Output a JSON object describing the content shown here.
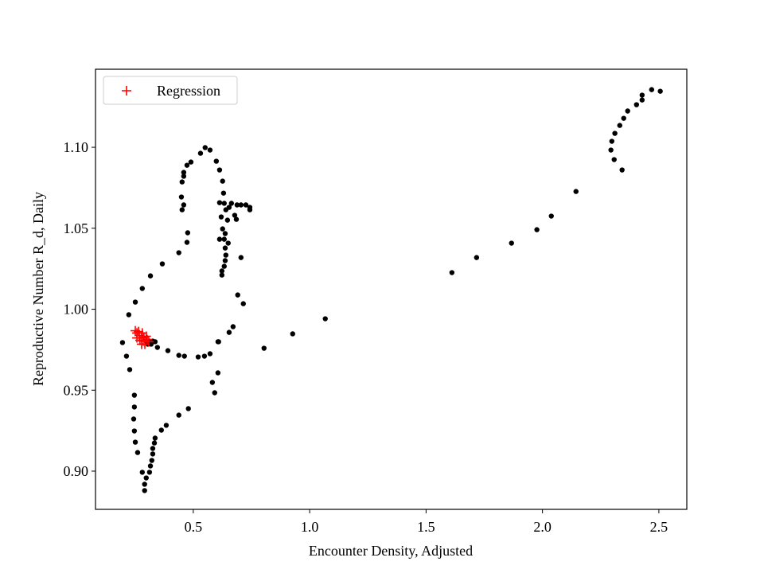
{
  "chart_data": {
    "type": "scatter",
    "x_label": "Encounter Density, Adjusted",
    "y_label": "Reproductive Number R_d, Daily",
    "xlim": [
      0.08,
      2.62
    ],
    "ylim": [
      0.8764,
      1.1482
    ],
    "xticks": [
      0.5,
      {
        "value": 1.0,
        "label": "1.0"
      },
      1.5,
      {
        "value": 2.0,
        "label": "2.0"
      },
      2.5
    ],
    "yticks": [
      {
        "value": 0.9,
        "label": "0.90"
      },
      0.95,
      {
        "value": 1.0,
        "label": "1.00"
      },
      1.05,
      {
        "value": 1.1,
        "label": "1.10"
      }
    ],
    "legend": "upper left",
    "series": [
      {
        "color": "#000000",
        "marker": "dot",
        "x": [
          2.506,
          2.469,
          2.428,
          2.428,
          2.404,
          2.366,
          2.349,
          2.332,
          2.311,
          2.298,
          2.294,
          2.308,
          2.342,
          2.144,
          2.038,
          1.976,
          1.867,
          1.717,
          1.611,
          1.067,
          0.927,
          0.804,
          0.671,
          0.654,
          0.609,
          0.572,
          0.548,
          0.521,
          0.462,
          0.438,
          0.391,
          0.346,
          0.305,
          0.298,
          0.312,
          0.326,
          0.336,
          0.319,
          0.196,
          0.213,
          0.227,
          0.247,
          0.247,
          0.244,
          0.247,
          0.251,
          0.261,
          0.281,
          0.298,
          0.291,
          0.291,
          0.312,
          0.316,
          0.322,
          0.326,
          0.326,
          0.333,
          0.336,
          0.363,
          0.384,
          0.438,
          0.479,
          0.582,
          0.592,
          0.606,
          0.606,
          0.223,
          0.251,
          0.281,
          0.316,
          0.367,
          0.438,
          0.473,
          0.476,
          0.459,
          0.452,
          0.449,
          0.452,
          0.459,
          0.459,
          0.473,
          0.49,
          0.531,
          0.551,
          0.572,
          0.599,
          0.613,
          0.626,
          0.63,
          0.633,
          0.613,
          0.62,
          0.626,
          0.637,
          0.633,
          0.613,
          0.65,
          0.637,
          0.64,
          0.637,
          0.633,
          0.623,
          0.623,
          0.647,
          0.64,
          0.654,
          0.664,
          0.678,
          0.685,
          0.688,
          0.705,
          0.726,
          0.743,
          0.743,
          0.705,
          0.691,
          0.715
        ],
        "values": [
          1.1346,
          1.1356,
          1.1322,
          1.1292,
          1.1263,
          1.1224,
          1.1179,
          1.1135,
          1.1086,
          1.1037,
          1.0983,
          1.0924,
          1.086,
          1.0727,
          1.0575,
          1.0491,
          1.0408,
          1.0319,
          1.0226,
          0.9941,
          0.9848,
          0.9759,
          0.9892,
          0.9857,
          0.9799,
          0.9725,
          0.971,
          0.9705,
          0.971,
          0.9715,
          0.9744,
          0.9764,
          0.9784,
          0.9803,
          0.9803,
          0.9803,
          0.9799,
          0.9784,
          0.9794,
          0.971,
          0.9627,
          0.9469,
          0.9396,
          0.9322,
          0.9248,
          0.9179,
          0.9115,
          0.8993,
          0.8958,
          0.8919,
          0.888,
          0.8993,
          0.9032,
          0.9066,
          0.9106,
          0.914,
          0.9174,
          0.9204,
          0.9253,
          0.9283,
          0.9346,
          0.9386,
          0.9548,
          0.9484,
          0.9607,
          0.9799,
          0.9966,
          1.0044,
          1.0128,
          1.0206,
          1.028,
          1.0349,
          1.0413,
          1.0472,
          1.0644,
          1.0614,
          1.0693,
          1.0786,
          1.0821,
          1.0845,
          1.0889,
          1.0909,
          1.0963,
          1.0998,
          1.0983,
          1.0914,
          1.086,
          1.0791,
          1.0717,
          1.0654,
          1.0658,
          1.057,
          1.0496,
          1.0467,
          1.0432,
          1.0432,
          1.0408,
          1.0378,
          1.0334,
          1.03,
          1.0265,
          1.0236,
          1.0211,
          1.055,
          1.0614,
          1.0629,
          1.0654,
          1.058,
          1.0555,
          1.0644,
          1.0644,
          1.0644,
          1.0629,
          1.0614,
          1.0319,
          1.0088,
          1.0034
        ]
      },
      {
        "name": "Regression",
        "color": "#ff0000",
        "marker": "plus",
        "x": [
          0.251,
          0.258,
          0.268,
          0.278,
          0.285,
          0.271,
          0.258,
          0.288,
          0.298,
          0.302,
          0.309,
          0.278,
          0.292,
          0.265,
          0.281
        ],
        "values": [
          0.9867,
          0.9853,
          0.9838,
          0.9823,
          0.9803,
          0.9808,
          0.9823,
          0.9828,
          0.9833,
          0.9813,
          0.9799,
          0.9784,
          0.9784,
          0.9862,
          0.9853
        ]
      }
    ]
  }
}
